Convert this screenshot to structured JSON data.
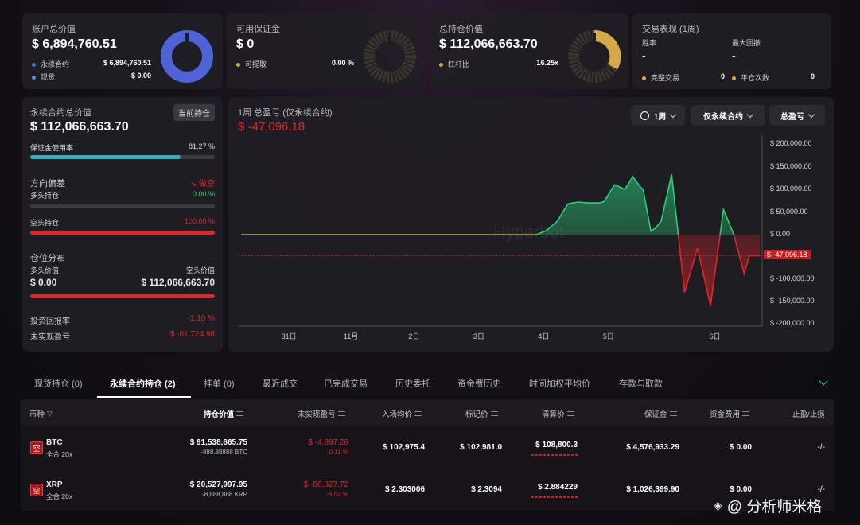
{
  "summary": {
    "account_value": {
      "label": "账户总价值",
      "value": "$ 6,894,760.51",
      "rows": [
        {
          "name": "永续合约",
          "value": "$ 6,894,760.51",
          "color": "#4d63d6"
        },
        {
          "name": "现货",
          "value": "$ 0.00",
          "color": "#5a8be8"
        }
      ]
    },
    "margin": {
      "label": "可用保证金",
      "value": "$ 0",
      "row_name": "可提取",
      "row_value": "0.00 %"
    },
    "position_value": {
      "label": "总持仓价值",
      "value": "$ 112,066,663.70",
      "row_name": "杠杆比",
      "row_value": "16.25x"
    },
    "performance": {
      "label": "交易表现 (1周)",
      "winrate_label": "胜率",
      "winrate_value": "-",
      "drawdown_label": "最大回撤",
      "drawdown_value": "-",
      "completed_label": "完整交易",
      "completed_value": "0",
      "closed_label": "平仓次数",
      "closed_value": "0"
    }
  },
  "perp_panel": {
    "title": "永续合约总价值",
    "badge": "当前持仓",
    "value": "$ 112,066,663.70",
    "margin_usage_label": "保证金使用率",
    "margin_usage_value": "81.27 %",
    "margin_usage_frac": 0.8127,
    "direction_label": "方向偏差",
    "direction_value": "做空",
    "long_label": "多头持仓",
    "long_value": "0.00 %",
    "long_frac": 0,
    "short_label": "空头持仓",
    "short_value": "100.00 %",
    "short_frac": 1,
    "dist_label": "仓位分布",
    "long_val_label": "多头价值",
    "short_val_label": "空头价值",
    "long_val": "$ 0.00",
    "short_val": "$ 112,066,663.70",
    "roi_label": "投资回报率",
    "roi_value": "-1.10 %",
    "unrealized_label": "未实现盈亏",
    "unrealized_value": "$ -61,724.98"
  },
  "chart_header": {
    "title": "1周 总盈亏 (仅永续合约)",
    "value": "$ -47,096.18",
    "period_btn": "1周",
    "scope_btn": "仅永续合约",
    "metric_btn": "总盈亏",
    "watermark": "Hyperbot"
  },
  "chart_data": {
    "type": "area",
    "title": "1周 总盈亏 (仅永续合约)",
    "x_tick_labels": [
      "31日",
      "11月",
      "2日",
      "3日",
      "4日",
      "5日",
      "6日"
    ],
    "y_tick_labels": [
      "$ 200,000.00",
      "$ 150,000.00",
      "$ 100,000.00",
      "$ 50,000.00",
      "$ 0.00",
      "$ -100,000.00",
      "$ -150,000.00",
      "$ -200,000.00"
    ],
    "ylim": [
      -200000,
      200000
    ],
    "current_label": "$ -47,096.18",
    "current_value": -47096.18,
    "x": [
      0,
      0.57,
      0.59,
      0.61,
      0.63,
      0.65,
      0.67,
      0.69,
      0.7,
      0.72,
      0.74,
      0.755,
      0.77,
      0.775,
      0.79,
      0.8,
      0.81,
      0.83,
      0.855,
      0.88,
      0.905,
      0.93,
      0.95,
      0.97,
      0.98,
      1.0
    ],
    "values": [
      0,
      0,
      10000,
      30000,
      68000,
      72000,
      70000,
      70000,
      73000,
      110000,
      100000,
      128000,
      105000,
      100000,
      8000,
      15000,
      30000,
      133000,
      -130000,
      -30000,
      -160000,
      55000,
      0,
      -88000,
      -47096,
      -47096
    ]
  },
  "tabs": [
    "现货持仓 (0)",
    "永续合约持仓 (2)",
    "挂单 (0)",
    "最近成交",
    "已完成交易",
    "历史委托",
    "资金费历史",
    "时间加权平均价",
    "存款与取款"
  ],
  "table": {
    "headers": [
      "币种",
      "持仓价值",
      "未实现盈亏",
      "入场均价",
      "标记价",
      "清算价",
      "保证金",
      "资金费用",
      "止盈/止损"
    ],
    "rows": [
      {
        "icon": "空",
        "coin": "BTC",
        "mode": "全合 20x",
        "value": "$ 91,538,665.75",
        "value_sub": "-888.88888 BTC",
        "pnl": "$ -4,897.26",
        "pnl_pct": "-0.11 %",
        "entry": "$ 102,975.4",
        "mark": "$ 102,981.0",
        "liq": "$ 108,800.3",
        "margin": "$ 4,576,933.29",
        "funding": "$ 0.00",
        "tpsl": "-/-"
      },
      {
        "icon": "空",
        "coin": "XRP",
        "mode": "全合 20x",
        "value": "$ 20,527,997.95",
        "value_sub": "-8,888,888 XRP",
        "pnl": "$ -56,827.72",
        "pnl_pct": "-5.54 %",
        "entry": "$ 2.303006",
        "mark": "$ 2.3094",
        "liq": "$ 2.884229",
        "margin": "$ 1,026,399.90",
        "funding": "$ 0.00",
        "tpsl": "-/-"
      }
    ]
  },
  "footer_watermark": "@ 分析师米格",
  "colors": {
    "accent_blue": "#4d63d6",
    "gold": "#d4a94a",
    "red": "#e0262b",
    "green": "#2bd07a",
    "teal": "#2ab0c6"
  }
}
